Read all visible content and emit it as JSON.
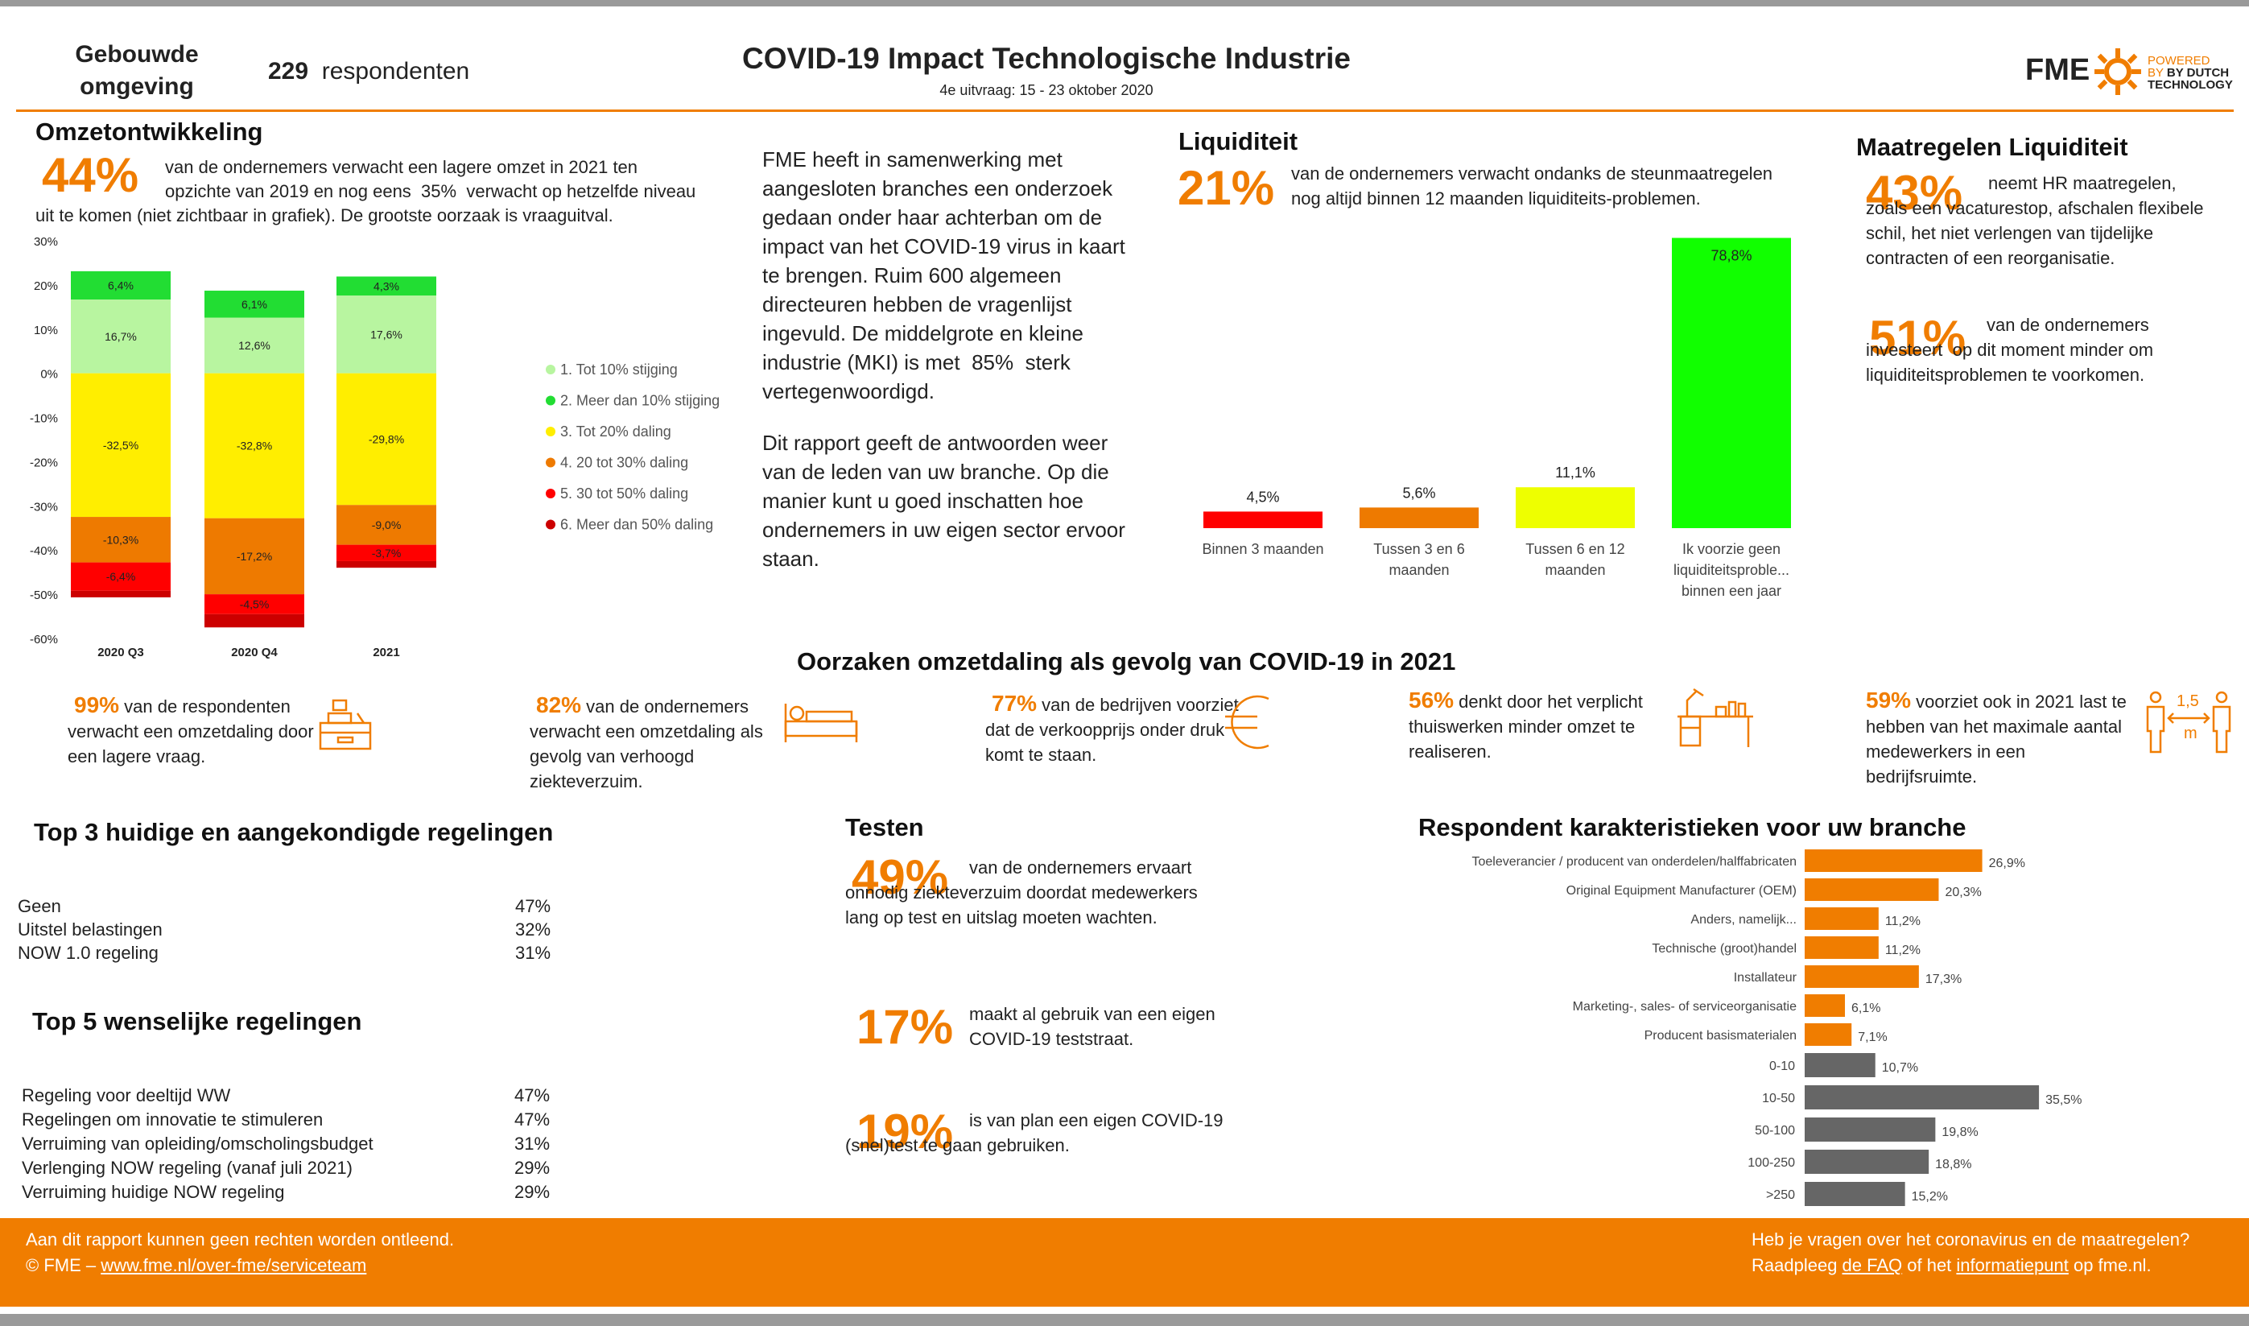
{
  "colors": {
    "orange": "#f07d00",
    "gray": "#666666",
    "green": "#22dd33",
    "lightgreen": "#b8f5a0",
    "yellow": "#ffee00",
    "darkorange": "#ee7a00",
    "red": "#ff0000",
    "darkred": "#cc0000",
    "brightgreen": "#11ff00",
    "lightyellow": "#eeff00"
  },
  "header": {
    "sector": "Gebouwde omgeving",
    "respondents_count": "229",
    "respondents_label": "respondenten",
    "title": "COVID-19 Impact Technologische Industrie",
    "subtitle": "4e uitvraag: 15 - 23 oktober 2020",
    "logo_text": "FME",
    "powered1": "POWERED",
    "powered2": "BY DUTCH",
    "powered3": "TECHNOLOGY"
  },
  "omzet": {
    "heading": "Omzetontwikkeling",
    "pct": "44%",
    "text_a": "van de ondernemers verwacht een lagere omzet in 2021 ten",
    "text_b": "opzichte van 2019 en nog eens",
    "pct2": "35%",
    "text_c": "verwacht op hetzelfde niveau",
    "text_d": "uit te komen (niet zichtbaar in grafiek). De grootste oorzaak is vraaguitval."
  },
  "intro": {
    "p1": "FME heeft in samenwerking met aangesloten branches een onderzoek gedaan onder haar achterban om de impact van het COVID-19 virus in kaart te brengen. Ruim 600 algemeen directeuren hebben de vragenlijst ingevuld. De middelgrote en kleine industrie (MKI) is met",
    "p1_pct": "85%",
    "p1_end": "sterk vertegenwoordigd.",
    "p2": "Dit rapport geeft de antwoorden weer van de leden van uw branche. Op die manier kunt u goed inschatten hoe ondernemers in uw eigen sector ervoor staan."
  },
  "liq": {
    "heading": "Liquiditeit",
    "pct": "21%",
    "text": "van de ondernemers verwacht ondanks de steunmaatregelen nog altijd binnen 12 maanden liquiditeits-problemen."
  },
  "maatregelen": {
    "heading": "Maatregelen Liquiditeit",
    "pct1": "43%",
    "text1": "neemt HR maatregelen, zoals een vacaturestop, afschalen flexibele schil, het niet verlengen van tijdelijke contracten of een reorganisatie.",
    "pct2": "51%",
    "text2a": "van de ondernemers",
    "text2b": "investeert",
    "text2c": "op dit moment minder om liquiditeitsproblemen te voorkomen."
  },
  "oorzaken": {
    "heading": "Oorzaken omzetdaling als gevolg van COVID-19 in 2021",
    "items": [
      {
        "pct": "99%",
        "text": "van de respondenten verwacht een omzetdaling door een lagere vraag.",
        "icon": "cash-register-icon"
      },
      {
        "pct": "82%",
        "text": "van de ondernemers verwacht een omzetdaling als gevolg van verhoogd ziekteverzuim.",
        "icon": "bed-icon"
      },
      {
        "pct": "77%",
        "text": "van de bedrijven voorziet dat de verkoopprijs onder druk komt te staan.",
        "icon": "euro-icon"
      },
      {
        "pct": "56%",
        "text": "denkt door het verplicht thuiswerken minder omzet te realiseren.",
        "icon": "desk-icon"
      },
      {
        "pct": "59%",
        "text": "voorziet ook in 2021 last te hebben van het maximale aantal medewerkers in een bedrijfsruimte.",
        "icon": "distance-icon",
        "distance": "1,5",
        "unit": "m"
      }
    ]
  },
  "top3": {
    "heading": "Top 3 huidige en aangekondigde regelingen",
    "rows": [
      {
        "label": "Geen",
        "value": "47%"
      },
      {
        "label": "Uitstel belastingen",
        "value": "32%"
      },
      {
        "label": "NOW 1.0 regeling",
        "value": "31%"
      }
    ]
  },
  "top5": {
    "heading": "Top 5 wenselijke regelingen",
    "rows": [
      {
        "label": "Regeling voor deeltijd WW",
        "value": "47%"
      },
      {
        "label": "Regelingen om innovatie te stimuleren",
        "value": "47%"
      },
      {
        "label": "Verruiming van opleiding/omscholingsbudget",
        "value": "31%"
      },
      {
        "label": "Verlenging NOW regeling (vanaf juli 2021)",
        "value": "29%"
      },
      {
        "label": "Verruiming huidige NOW regeling",
        "value": "29%"
      }
    ]
  },
  "testen": {
    "heading": "Testen",
    "items": [
      {
        "pct": "49%",
        "text": "van de ondernemers ervaart onnodig ziekteverzuim doordat medewerkers lang op test en uitslag moeten wachten."
      },
      {
        "pct": "17%",
        "text": "maakt al gebruik van een eigen COVID-19 teststraat."
      },
      {
        "pct": "19%",
        "text": "is van plan een eigen COVID-19 (snel)test te gaan gebruiken."
      }
    ]
  },
  "respondent": {
    "heading": "Respondent karakteristieken voor uw branche"
  },
  "footer": {
    "left1": "Aan dit rapport kunnen geen rechten worden ontleend.",
    "left2": "© FME – ",
    "link1": "www.fme.nl/over-fme/serviceteam",
    "right1": "Heb je vragen over het coronavirus en de maatregelen?",
    "right2a": "Raadpleeg ",
    "link2": "de FAQ",
    "right2b": " of het ",
    "link3": "informatiepunt",
    "right2c": " op fme.nl."
  },
  "chart_data": [
    {
      "type": "bar",
      "stacked": true,
      "categories": [
        "2020 Q3",
        "2020 Q4",
        "2021"
      ],
      "ylim": [
        -60,
        30
      ],
      "yticks": [
        "30%",
        "20%",
        "10%",
        "0%",
        "-10%",
        "-20%",
        "-30%",
        "-40%",
        "-50%",
        "-60%"
      ],
      "legend_position": "right",
      "series": [
        {
          "name": "1. Tot 10% stijging",
          "color": "#b8f5a0",
          "values": [
            16.7,
            12.6,
            17.6
          ],
          "labels": [
            "16,7%",
            "12,6%",
            "17,6%"
          ]
        },
        {
          "name": "2. Meer dan 10% stijging",
          "color": "#22dd33",
          "values": [
            6.4,
            6.1,
            4.3
          ],
          "labels": [
            "6,4%",
            "6,1%",
            "4,3%"
          ]
        },
        {
          "name": "3. Tot 20% daling",
          "color": "#ffee00",
          "values": [
            -32.5,
            -32.8,
            -29.8
          ],
          "labels": [
            "-32,5%",
            "-32,8%",
            "-29,8%"
          ]
        },
        {
          "name": "4. 20 tot 30% daling",
          "color": "#ee7a00",
          "values": [
            -10.3,
            -17.2,
            -9.0
          ],
          "labels": [
            "-10,3%",
            "-17,2%",
            "-9,0%"
          ]
        },
        {
          "name": "5. 30 tot 50% daling",
          "color": "#ff0000",
          "values": [
            -6.4,
            -4.5,
            -3.7
          ],
          "labels": [
            "-6,4%",
            "-4,5%",
            "-3,7%"
          ]
        },
        {
          "name": "6. Meer dan 50% daling",
          "color": "#cc0000",
          "values": [
            -1.5,
            -3.0,
            -1.5
          ],
          "labels": [
            "",
            "",
            ""
          ]
        }
      ]
    },
    {
      "type": "bar",
      "categories": [
        "Binnen 3 maanden",
        "Tussen 3 en 6 maanden",
        "Tussen 6 en 12 maanden",
        "Ik voorzie geen liquiditeitsproble... binnen een jaar"
      ],
      "values": [
        4.5,
        5.6,
        11.1,
        78.8
      ],
      "labels": [
        "4,5%",
        "5,6%",
        "11,1%",
        "78,8%"
      ],
      "colors": [
        "#ff0000",
        "#ee7a00",
        "#eeff00",
        "#11ff00"
      ]
    },
    {
      "type": "bar",
      "orientation": "horizontal",
      "categories": [
        "Toeleverancier / producent van onderdelen/halffabricaten",
        "Original Equipment Manufacturer (OEM)",
        "Anders, namelijk...",
        "Technische (groot)handel",
        "Installateur",
        "Marketing-, sales- of serviceorganisatie",
        "Producent basismaterialen"
      ],
      "values": [
        26.9,
        20.3,
        11.2,
        11.2,
        17.3,
        6.1,
        7.1
      ],
      "labels": [
        "26,9%",
        "20,3%",
        "11,2%",
        "11,2%",
        "17,3%",
        "6,1%",
        "7,1%"
      ],
      "color": "#f07d00"
    },
    {
      "type": "bar",
      "orientation": "horizontal",
      "categories": [
        "0-10",
        "10-50",
        "50-100",
        "100-250",
        ">250"
      ],
      "values": [
        10.7,
        35.5,
        19.8,
        18.8,
        15.2
      ],
      "labels": [
        "10,7%",
        "35,5%",
        "19,8%",
        "18,8%",
        "15,2%"
      ],
      "color": "#666666"
    }
  ]
}
